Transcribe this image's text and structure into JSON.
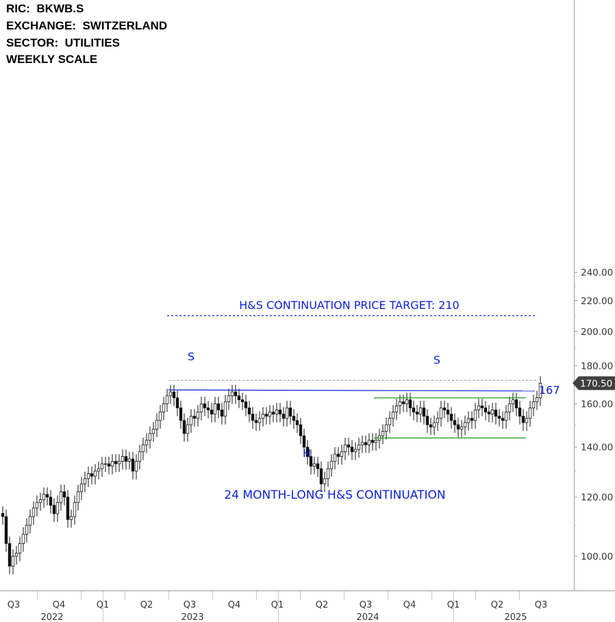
{
  "header": {
    "ric": "RIC:  BKWB.S",
    "exchange": "EXCHANGE:  SWITZERLAND",
    "sector": "SECTOR:  UTILITIES",
    "scale": "WEEKLY SCALE"
  },
  "chart_data": {
    "type": "candlestick",
    "yscale": "log",
    "ylim": [
      93,
      250
    ],
    "y_ticks": [
      "100.00",
      "120.00",
      "140.00",
      "160.00",
      "180.00",
      "200.00",
      "220.00",
      "240.00"
    ],
    "y_tick_values": [
      100,
      120,
      140,
      160,
      180,
      200,
      220,
      240
    ],
    "quarter_labels": [
      "Q3",
      "Q4",
      "Q1",
      "Q2",
      "Q3",
      "Q4",
      "Q1",
      "Q2",
      "Q3",
      "Q4",
      "Q1",
      "Q2",
      "Q3"
    ],
    "year_labels": [
      "2022",
      "2023",
      "2024",
      "2025"
    ],
    "last_price_label": "170.50",
    "last_price": 170.5,
    "annotations": {
      "target_text": "H&S CONTINUATION PRICE TARGET: 210",
      "target_value": 210,
      "neckline_text": "167",
      "neckline_value": 167,
      "pattern_text": "24 MONTH-LONG H&S CONTINUATION",
      "left_shoulder": "S",
      "head": "H",
      "right_shoulder": "S",
      "range_top": 163,
      "range_bottom": 144,
      "prior_high": 172
    },
    "weekly_closes": [
      113,
      104,
      97,
      100,
      101,
      104,
      107,
      110,
      113,
      116,
      118,
      119,
      121,
      120,
      117,
      114,
      118,
      122,
      120,
      112,
      113,
      118,
      122,
      125,
      127,
      129,
      128,
      130,
      131,
      133,
      133,
      132,
      134,
      133,
      134,
      136,
      134,
      135,
      130,
      134,
      138,
      141,
      143,
      146,
      148,
      152,
      156,
      160,
      164,
      166,
      163,
      158,
      152,
      146,
      150,
      154,
      153,
      156,
      160,
      158,
      157,
      155,
      160,
      157,
      154,
      161,
      164,
      166,
      164,
      162,
      161,
      158,
      155,
      152,
      151,
      153,
      155,
      154,
      156,
      155,
      157,
      155,
      153,
      158,
      154,
      152,
      150,
      145,
      140,
      136,
      132,
      133,
      131,
      125,
      127,
      131,
      134,
      137,
      136,
      138,
      141,
      140,
      138,
      139,
      141,
      142,
      141,
      143,
      142,
      143,
      145,
      147,
      150,
      153,
      156,
      159,
      161,
      160,
      162,
      158,
      156,
      155,
      158,
      154,
      150,
      149,
      151,
      153,
      158,
      157,
      155,
      152,
      150,
      148,
      149,
      151,
      153,
      152,
      157,
      159,
      158,
      156,
      155,
      157,
      154,
      153,
      152,
      156,
      160,
      162,
      158,
      154,
      151,
      153,
      158,
      161,
      163,
      170.5
    ]
  }
}
